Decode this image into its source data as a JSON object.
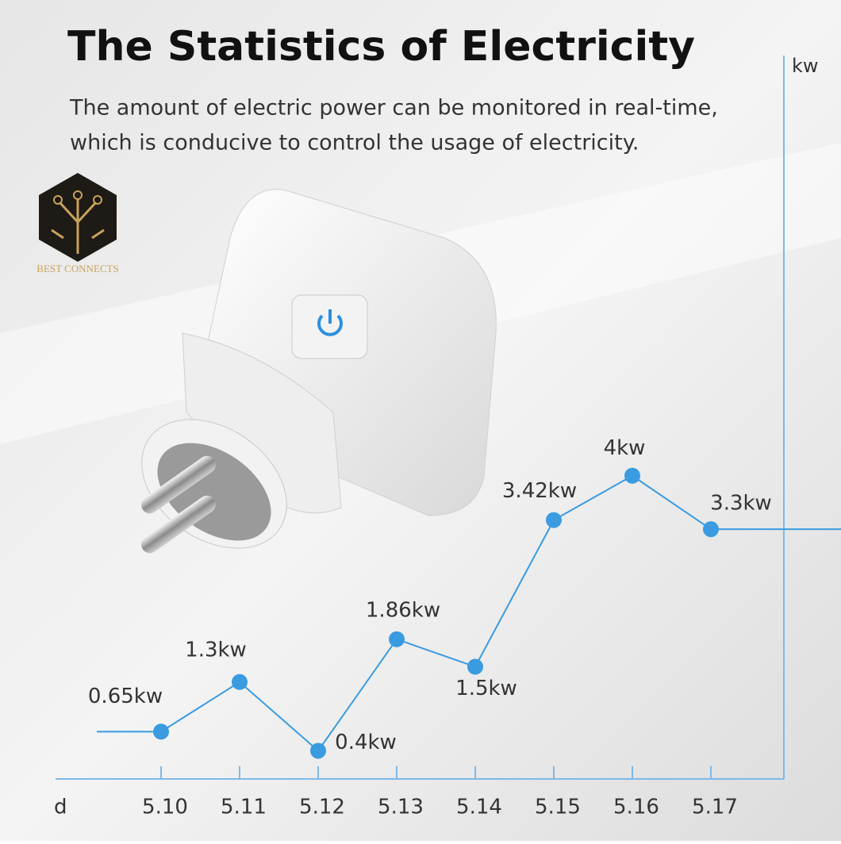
{
  "logo": "BEST CONNECTS",
  "chart_data": {
    "type": "line",
    "title": "The Statistics of Electricity",
    "subtitle": [
      "The amount of electric power can be monitored in real-time,",
      "which is conducive to control the usage of electricity."
    ],
    "x_label": "d",
    "y_label": "kw",
    "categories": [
      "5.10",
      "5.11",
      "5.12",
      "5.13",
      "5.14",
      "5.15",
      "5.16",
      "5.17"
    ],
    "values": [
      0.65,
      1.3,
      0.4,
      1.86,
      1.5,
      3.42,
      4,
      3.3
    ],
    "value_labels": [
      "0.65kw",
      "1.3kw",
      "0.4kw",
      "1.86kw",
      "1.5kw",
      "3.42kw",
      "4kw",
      "3.3kw"
    ],
    "color": "#3a9be0",
    "axis_color": "#7fb8e6",
    "ylim": [
      0,
      9.5
    ]
  }
}
